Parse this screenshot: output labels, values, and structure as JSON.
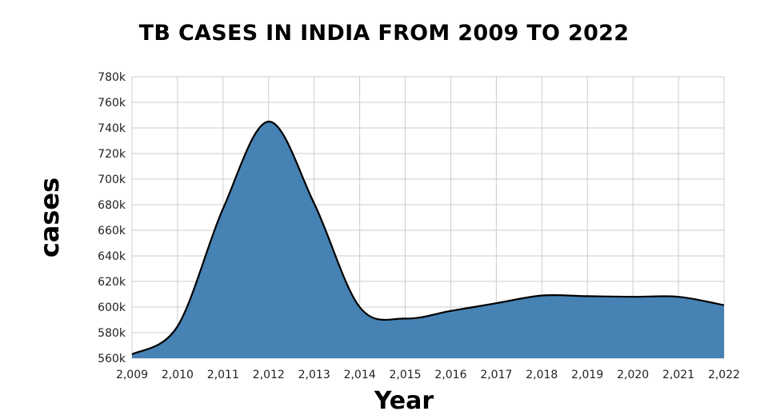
{
  "chart_data": {
    "type": "area",
    "title": "TB CASES IN INDIA FROM 2009 TO 2022",
    "xlabel": "Year",
    "ylabel": "cases",
    "x": [
      2009,
      2010,
      2011,
      2012,
      2013,
      2014,
      2015,
      2016,
      2017,
      2018,
      2019,
      2020,
      2021,
      2022
    ],
    "x_tick_labels": [
      "2,009",
      "2,010",
      "2,011",
      "2,012",
      "2,013",
      "2,014",
      "2,015",
      "2,016",
      "2,017",
      "2,018",
      "2,019",
      "2,020",
      "2,021",
      "2,022"
    ],
    "series": [
      {
        "values": [
          563000,
          585000,
          677000,
          745000,
          681000,
          600000,
          591000,
          597000,
          603000,
          609000,
          608500,
          608000,
          608000,
          601500
        ]
      }
    ],
    "ylim": [
      560000,
      780000
    ],
    "y_ticks": [
      560000,
      580000,
      600000,
      620000,
      640000,
      660000,
      680000,
      700000,
      720000,
      740000,
      760000,
      780000
    ],
    "y_tick_labels": [
      "560k",
      "580k",
      "600k",
      "620k",
      "640k",
      "660k",
      "680k",
      "700k",
      "720k",
      "740k",
      "760k",
      "780k"
    ],
    "grid": true,
    "legend": "none",
    "colors": {
      "fill": "#4682b4",
      "line": "#000000",
      "grid": "#cccccc"
    }
  }
}
